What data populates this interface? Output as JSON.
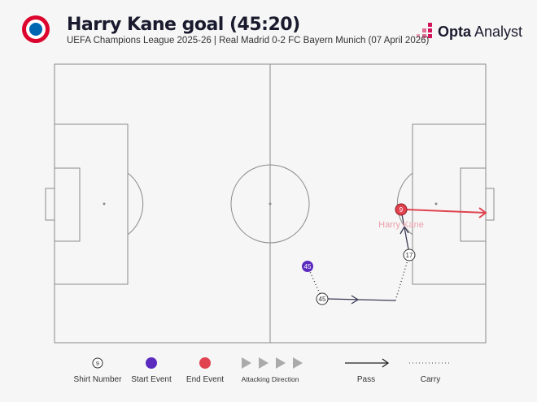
{
  "header": {
    "title": "Harry Kane goal (45:20)",
    "subtitle": "UEFA Champions League 2025-26 | Real Madrid 0-2 FC Bayern Munich (07 April 2026)",
    "brand_bold": "Opta",
    "brand_light": "Analyst",
    "club_logo": "FC BAYERN MÜNCHEN"
  },
  "events": {
    "start_number": "45",
    "pass_from_number": "45",
    "carry_end_number": "17",
    "end_number": "9",
    "player_label": "Harry Kane"
  },
  "legend": {
    "shirt_number": "Shirt Number",
    "shirt_example": "9",
    "start_event": "Start Event",
    "end_event": "End Event",
    "attacking_direction": "Attacking Direction",
    "pass": "Pass",
    "carry": "Carry"
  },
  "colors": {
    "start": "#5b2bbf",
    "end": "#e0434f",
    "label": "#e9a0aa",
    "pitch_line": "#8a8a8a"
  }
}
